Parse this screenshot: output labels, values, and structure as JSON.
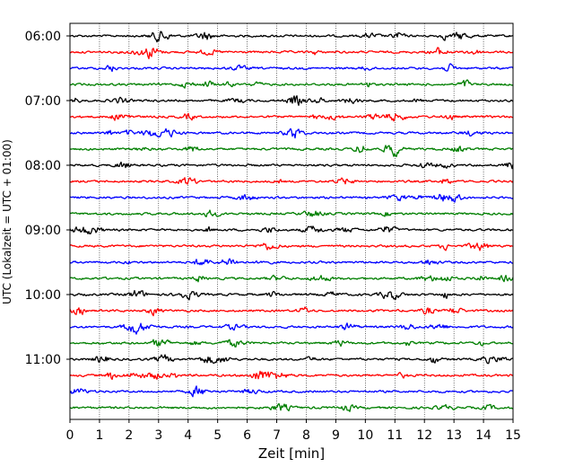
{
  "chart_data": {
    "type": "line",
    "title": "",
    "xlabel": "Zeit  [min]",
    "ylabel": "UTC (Lokalzeit = UTC + 01:00)",
    "xlim": [
      0,
      15
    ],
    "x_ticks": [
      "0",
      "1",
      "2",
      "3",
      "4",
      "5",
      "6",
      "7",
      "8",
      "9",
      "10",
      "11",
      "12",
      "13",
      "14",
      "15"
    ],
    "y_ticks": [
      "06:00",
      "07:00",
      "08:00",
      "09:00",
      "10:00",
      "11:00"
    ],
    "trace_start_times": [
      "06:00",
      "06:15",
      "06:30",
      "06:45",
      "07:00",
      "07:15",
      "07:30",
      "07:45",
      "08:00",
      "08:15",
      "08:30",
      "08:45",
      "09:00",
      "09:15",
      "09:30",
      "09:45",
      "10:00",
      "10:15",
      "10:30",
      "10:45",
      "11:00",
      "11:15",
      "11:30",
      "11:45"
    ],
    "trace_colors": [
      "#000000",
      "#ff0000",
      "#0000ff",
      "#007f00"
    ],
    "x_grid": true,
    "y_grid": false,
    "legend": "none"
  }
}
